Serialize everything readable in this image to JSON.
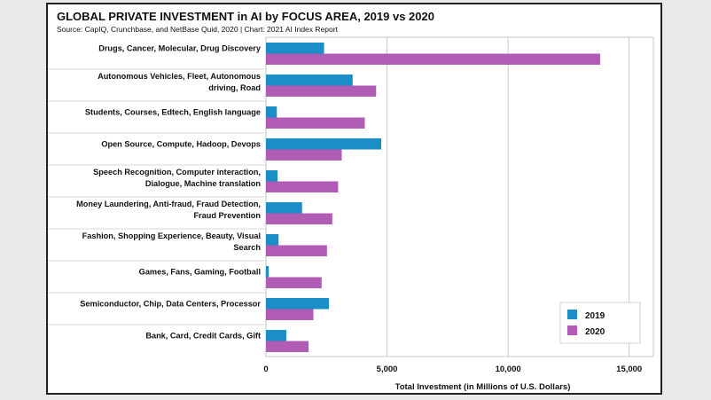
{
  "chart_data": {
    "type": "bar",
    "orientation": "horizontal",
    "title": "GLOBAL PRIVATE INVESTMENT in AI by FOCUS AREA, 2019 vs 2020",
    "subtitle": "Source: CapIQ, Crunchbase, and NetBase Quid, 2020 | Chart: 2021 AI Index Report",
    "xlabel": "Total Investment (in Millions of U.S. Dollars)",
    "ylabel": "",
    "xlim": [
      0,
      16000
    ],
    "xticks": [
      0,
      5000,
      10000,
      15000
    ],
    "xtick_labels": [
      "0",
      "5,000",
      "10,000",
      "15,000"
    ],
    "grid": "vertical",
    "legend_position": "bottom-right",
    "categories": [
      [
        "Drugs, Cancer, Molecular, Drug Discovery"
      ],
      [
        "Autonomous Vehicles, Fleet, Autonomous",
        "driving, Road"
      ],
      [
        "Students, Courses, Edtech, English language"
      ],
      [
        "Open Source, Compute, Hadoop, Devops"
      ],
      [
        "Speech Recognition, Computer interaction,",
        "Dialogue, Machine translation"
      ],
      [
        "Money Laundering, Anti-fraud, Fraud Detection,",
        "Fraud Prevention"
      ],
      [
        "Fashion, Shopping Experience, Beauty, Visual",
        "Search"
      ],
      [
        "Games, Fans, Gaming, Football"
      ],
      [
        "Semiconductor, Chip, Data Centers, Processor"
      ],
      [
        "Bank, Card, Credit Cards, Gift"
      ]
    ],
    "series": [
      {
        "name": "2019",
        "color": "#1b8ec7",
        "values": [
          2400,
          3580,
          450,
          4760,
          480,
          1490,
          520,
          110,
          2600,
          840
        ]
      },
      {
        "name": "2020",
        "color": "#b05bb4",
        "values": [
          13800,
          4550,
          4080,
          3130,
          2980,
          2740,
          2520,
          2300,
          1960,
          1760
        ]
      }
    ]
  }
}
